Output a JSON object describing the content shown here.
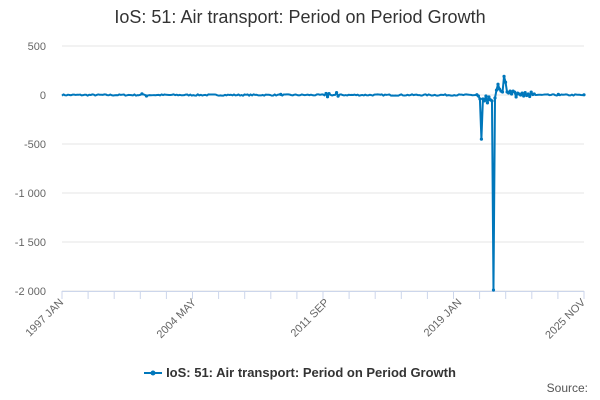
{
  "chart_data": {
    "type": "line",
    "title": "IoS: 51: Air transport: Period on Period Growth",
    "xlabel": "",
    "ylabel": "",
    "x_start": "1997 JAN",
    "x_end": "2025 NOV",
    "x_tick_labels": [
      "1997 JAN",
      "2004 MAY",
      "2011 SEP",
      "2019 JAN",
      "2025 NOV"
    ],
    "ylim": [
      -2000,
      500
    ],
    "y_ticks": [
      500,
      0,
      -500,
      -1000,
      -1500,
      -2000
    ],
    "y_tick_labels": [
      "500",
      "0",
      "-500",
      "-1 000",
      "-1 500",
      "-2 000"
    ],
    "grid": "horizontal",
    "legend_position": "bottom",
    "series": [
      {
        "name": "IoS: 51: Air transport: Period on Period Growth",
        "color": "#0077bb",
        "baseline_band": [
          -10,
          10
        ],
        "points": [
          [
            "2001 JUN",
            12
          ],
          [
            "2001 SEP",
            -10
          ],
          [
            "2009 FEB",
            6
          ],
          [
            "2011 AUG",
            15
          ],
          [
            "2011 SEP",
            -18
          ],
          [
            "2011 OCT",
            14
          ],
          [
            "2012 MAR",
            25
          ],
          [
            "2012 APR",
            -12
          ],
          [
            "2019 DEC",
            3
          ],
          [
            "2020 JAN",
            -10
          ],
          [
            "2020 FEB",
            -40
          ],
          [
            "2020 MAR",
            -450
          ],
          [
            "2020 APR",
            -40
          ],
          [
            "2020 MAY",
            -60
          ],
          [
            "2020 JUN",
            -10
          ],
          [
            "2020 JUL",
            -80
          ],
          [
            "2020 AUG",
            -20
          ],
          [
            "2020 SEP",
            -50
          ],
          [
            "2020 OCT",
            -60
          ],
          [
            "2020 NOV",
            -1990
          ],
          [
            "2020 DEC",
            -30
          ],
          [
            "2021 JAN",
            50
          ],
          [
            "2021 FEB",
            110
          ],
          [
            "2021 MAR",
            60
          ],
          [
            "2021 APR",
            40
          ],
          [
            "2021 MAY",
            30
          ],
          [
            "2021 JUN",
            190
          ],
          [
            "2021 JUL",
            130
          ],
          [
            "2021 AUG",
            30
          ],
          [
            "2021 SEP",
            20
          ],
          [
            "2021 OCT",
            40
          ],
          [
            "2021 NOV",
            10
          ],
          [
            "2021 DEC",
            40
          ],
          [
            "2022 JAN",
            30
          ],
          [
            "2022 FEB",
            -20
          ],
          [
            "2022 MAR",
            20
          ],
          [
            "2022 APR",
            10
          ],
          [
            "2022 MAY",
            0
          ],
          [
            "2022 JUN",
            20
          ],
          [
            "2022 JUL",
            -10
          ],
          [
            "2022 AUG",
            25
          ],
          [
            "2022 SEP",
            -5
          ],
          [
            "2022 OCT",
            10
          ],
          [
            "2022 NOV",
            -15
          ],
          [
            "2022 DEC",
            30
          ],
          [
            "2023 JAN",
            5
          ],
          [
            "2023 FEB",
            10
          ],
          [
            "2024 JUN",
            6
          ],
          [
            "2025 NOV",
            2
          ]
        ]
      }
    ]
  },
  "credits_label": "Source:"
}
